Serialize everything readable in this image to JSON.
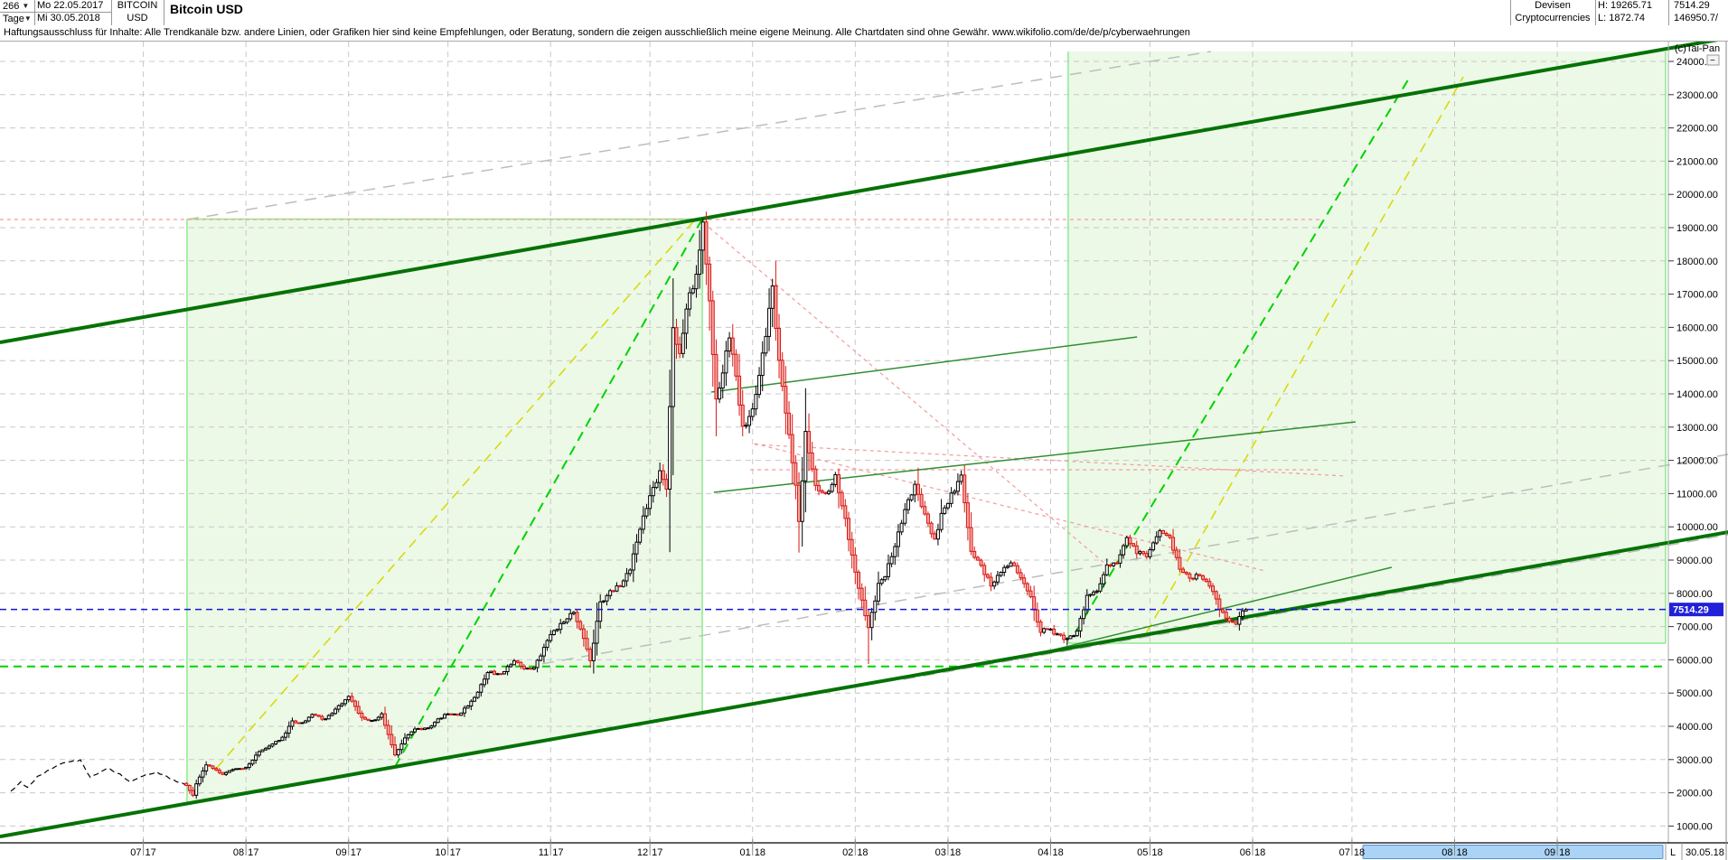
{
  "header": {
    "period": "266",
    "timeframe": "Tage",
    "date_from": "Mo 22.05.2017",
    "date_to": "Mi 30.05.2018",
    "symbol_line1": "BITCOIN",
    "symbol_line2": "USD",
    "title": "Bitcoin USD",
    "category_line1": "Devisen",
    "category_line2": "Cryptocurrencies",
    "high_label": "H: 19265.71",
    "low_label": "L: 1872.74",
    "last_price": "7514.29",
    "volume": "146950.7/"
  },
  "disclaimer": "Haftungsausschluss für Inhalte: Alle Trendkanäle bzw. andere Linien, oder Grafiken hier sind keine Empfehlungen, oder Beratung, sondern die zeigen ausschließlich meine eigene Meinung. Alle Chartdaten sind ohne Gewähr.  www.wikifolio.com/de/de/p/cyberwaehrungen",
  "watermark": "(c)Tai-Pan",
  "bottom_axis": {
    "last_label": "L",
    "last_date": "30.05.18"
  },
  "chart_data": {
    "type": "candlestick",
    "title": "Bitcoin USD",
    "x_start_date": "2017-05-22",
    "x_end_date": "2018-05-30",
    "high": 19265.71,
    "low": 1872.74,
    "last": 7514.29,
    "y_axis": {
      "min": 1000,
      "max": 24000,
      "step": 1000
    },
    "ylim": [
      430,
      24600
    ],
    "grid": true,
    "pre_line_end_day": 53,
    "months": [
      {
        "label": "07",
        "year": "17",
        "day": 40
      },
      {
        "label": "08",
        "year": "17",
        "day": 71
      },
      {
        "label": "09",
        "year": "17",
        "day": 102
      },
      {
        "label": "10",
        "year": "17",
        "day": 132
      },
      {
        "label": "11",
        "year": "17",
        "day": 163
      },
      {
        "label": "12",
        "year": "17",
        "day": 193
      },
      {
        "label": "01",
        "year": "18",
        "day": 224
      },
      {
        "label": "02",
        "year": "18",
        "day": 255
      },
      {
        "label": "03",
        "year": "18",
        "day": 283
      },
      {
        "label": "04",
        "year": "18",
        "day": 314
      },
      {
        "label": "05",
        "year": "18",
        "day": 344
      },
      {
        "label": "06",
        "year": "18",
        "day": 375
      },
      {
        "label": "07",
        "year": "18",
        "day": 405
      },
      {
        "label": "08",
        "year": "18",
        "day": 436
      },
      {
        "label": "09",
        "year": "18",
        "day": 467
      }
    ],
    "anchors": [
      [
        0,
        2050
      ],
      [
        3,
        2320
      ],
      [
        5,
        2150
      ],
      [
        8,
        2480
      ],
      [
        15,
        2880
      ],
      [
        21,
        2980
      ],
      [
        24,
        2450
      ],
      [
        29,
        2750
      ],
      [
        33,
        2550
      ],
      [
        36,
        2330
      ],
      [
        41,
        2550
      ],
      [
        44,
        2620
      ],
      [
        50,
        2350
      ],
      [
        53,
        2230
      ],
      [
        55,
        1930
      ],
      [
        56,
        2280
      ],
      [
        59,
        2850
      ],
      [
        64,
        2550
      ],
      [
        67,
        2700
      ],
      [
        71,
        2750
      ],
      [
        75,
        3250
      ],
      [
        78,
        3400
      ],
      [
        82,
        3650
      ],
      [
        85,
        4150
      ],
      [
        88,
        4100
      ],
      [
        91,
        4350
      ],
      [
        95,
        4200
      ],
      [
        99,
        4600
      ],
      [
        102,
        4900
      ],
      [
        106,
        4250
      ],
      [
        109,
        4150
      ],
      [
        112,
        4350
      ],
      [
        116,
        3150
      ],
      [
        119,
        3650
      ],
      [
        122,
        3900
      ],
      [
        126,
        3950
      ],
      [
        129,
        4200
      ],
      [
        132,
        4400
      ],
      [
        135,
        4320
      ],
      [
        140,
        4850
      ],
      [
        144,
        5650
      ],
      [
        148,
        5550
      ],
      [
        152,
        6000
      ],
      [
        155,
        5700
      ],
      [
        158,
        5750
      ],
      [
        163,
        6750
      ],
      [
        167,
        7150
      ],
      [
        170,
        7450
      ],
      [
        173,
        6650
      ],
      [
        175,
        5950
      ],
      [
        178,
        7700
      ],
      [
        181,
        8050
      ],
      [
        184,
        8250
      ],
      [
        187,
        8750
      ],
      [
        190,
        9950
      ],
      [
        193,
        10900
      ],
      [
        196,
        11650
      ],
      [
        198,
        11200
      ],
      [
        200,
        16000
      ],
      [
        202,
        15150
      ],
      [
        204,
        16650
      ],
      [
        207,
        17550
      ],
      [
        209,
        19200
      ],
      [
        211,
        16700
      ],
      [
        213,
        13800
      ],
      [
        215,
        14650
      ],
      [
        217,
        15750
      ],
      [
        219,
        14450
      ],
      [
        221,
        12950
      ],
      [
        224,
        13500
      ],
      [
        227,
        15150
      ],
      [
        230,
        17150
      ],
      [
        232,
        14950
      ],
      [
        234,
        13400
      ],
      [
        237,
        11300
      ],
      [
        238,
        10100
      ],
      [
        240,
        12800
      ],
      [
        243,
        11250
      ],
      [
        246,
        10950
      ],
      [
        249,
        11500
      ],
      [
        252,
        10250
      ],
      [
        254,
        9100
      ],
      [
        257,
        7750
      ],
      [
        259,
        6950
      ],
      [
        262,
        8250
      ],
      [
        264,
        8550
      ],
      [
        267,
        9450
      ],
      [
        270,
        10500
      ],
      [
        273,
        11250
      ],
      [
        276,
        10350
      ],
      [
        279,
        9600
      ],
      [
        281,
        10350
      ],
      [
        284,
        10950
      ],
      [
        287,
        11500
      ],
      [
        290,
        9250
      ],
      [
        293,
        8800
      ],
      [
        296,
        8250
      ],
      [
        299,
        8650
      ],
      [
        302,
        8950
      ],
      [
        305,
        8450
      ],
      [
        308,
        7850
      ],
      [
        311,
        6850
      ],
      [
        313,
        6950
      ],
      [
        316,
        6750
      ],
      [
        319,
        6600
      ],
      [
        322,
        6850
      ],
      [
        325,
        7900
      ],
      [
        328,
        8050
      ],
      [
        331,
        8850
      ],
      [
        334,
        8950
      ],
      [
        337,
        9650
      ],
      [
        340,
        9250
      ],
      [
        343,
        9100
      ],
      [
        347,
        9850
      ],
      [
        350,
        9650
      ],
      [
        353,
        8750
      ],
      [
        356,
        8450
      ],
      [
        359,
        8550
      ],
      [
        362,
        8250
      ],
      [
        365,
        7550
      ],
      [
        368,
        7150
      ],
      [
        370,
        7100
      ],
      [
        372,
        7450
      ],
      [
        373,
        7514.29
      ]
    ],
    "candle_overrides": [
      {
        "day": 209,
        "high": 19265.71
      },
      {
        "day": 55,
        "low": 1872.74
      },
      {
        "day": 259,
        "low": 5873
      },
      {
        "day": 274,
        "high": 11780
      },
      {
        "day": 287,
        "high": 11690
      },
      {
        "day": 319,
        "low": 6430
      },
      {
        "day": 373,
        "close": 7514.29
      }
    ],
    "regions": [
      {
        "name": "channel-zone-1",
        "pts": [
          [
            53.2,
            19258
          ],
          [
            208.8,
            19258
          ],
          [
            208.8,
            4408
          ],
          [
            53.2,
            1690
          ]
        ]
      },
      {
        "name": "channel-zone-2",
        "pts": [
          [
            319.3,
            24299
          ],
          [
            499.7,
            24299
          ],
          [
            499.7,
            6500
          ],
          [
            319.3,
            6500
          ]
        ]
      }
    ],
    "overlays": [
      {
        "n": "gray-diagonal-1",
        "c": "#bdbdbd",
        "w": 1.5,
        "d": "13 9",
        "p": [
          [
            53.2,
            19244
          ],
          [
            362.4,
            24299
          ]
        ]
      },
      {
        "n": "gray-diagonal-2",
        "c": "#bdbdbd",
        "w": 1.5,
        "d": "13 9",
        "p": [
          [
            160.5,
            5880
          ],
          [
            518.6,
            12180
          ]
        ]
      },
      {
        "n": "gray-diagonal-3",
        "c": "#bdbdbd",
        "w": 1.5,
        "d": "13 9",
        "p": [
          [
            269.6,
            5413
          ],
          [
            518.6,
            9761
          ]
        ]
      },
      {
        "n": "support-dashed-green",
        "c": "#00d200",
        "w": 2,
        "d": "9 6",
        "p": [
          [
            -3.3,
            5800
          ],
          [
            499.7,
            5800
          ]
        ]
      },
      {
        "n": "zone1-border-top",
        "c": "#90e890",
        "w": 1.5,
        "d": null,
        "p": [
          [
            53.2,
            19258
          ],
          [
            208.8,
            19258
          ]
        ]
      },
      {
        "n": "zone1-border-left",
        "c": "#90e890",
        "w": 1.5,
        "d": null,
        "p": [
          [
            53.2,
            19258
          ],
          [
            53.2,
            1690
          ]
        ]
      },
      {
        "n": "zone1-border-right",
        "c": "#90e890",
        "w": 1.5,
        "d": null,
        "p": [
          [
            208.8,
            19258
          ],
          [
            208.8,
            4408
          ]
        ]
      },
      {
        "n": "zone2-border-left",
        "c": "#90e890",
        "w": 1.5,
        "d": null,
        "p": [
          [
            319.3,
            24299
          ],
          [
            319.3,
            6500
          ]
        ]
      },
      {
        "n": "zone2-border-right",
        "c": "#90e890",
        "w": 1.5,
        "d": null,
        "p": [
          [
            499.7,
            24299
          ],
          [
            499.7,
            6500
          ]
        ]
      },
      {
        "n": "zone2-border-bottom",
        "c": "#90e890",
        "w": 1.5,
        "d": null,
        "p": [
          [
            319.3,
            6500
          ],
          [
            499.7,
            6500
          ]
        ]
      },
      {
        "n": "fan-dashed-green-1",
        "c": "#00d200",
        "w": 2,
        "d": "11 7",
        "p": [
          [
            116,
            2777
          ],
          [
            209.3,
            19353
          ]
        ]
      },
      {
        "n": "fan-dashed-green-2",
        "c": "#00d200",
        "w": 2,
        "d": "11 7",
        "p": [
          [
            321.5,
            6826
          ],
          [
            422.5,
            23538
          ]
        ]
      },
      {
        "n": "fan-dashed-yellow-1",
        "c": "#d8d800",
        "w": 1.5,
        "d": "11 7",
        "p": [
          [
            62.2,
            2750
          ],
          [
            207.4,
            19326
          ]
        ]
      },
      {
        "n": "fan-dashed-yellow-2",
        "c": "#d8d800",
        "w": 1.5,
        "d": "11 7",
        "p": [
          [
            343,
            6826
          ],
          [
            438.6,
            23538
          ]
        ]
      },
      {
        "n": "red-dotted-ath",
        "c": "#f59a9a",
        "w": 1.2,
        "d": "4 4",
        "p": [
          [
            -3.3,
            19244
          ],
          [
            395.2,
            19244
          ]
        ]
      },
      {
        "n": "red-dotted-feb-high",
        "c": "#f59a9a",
        "w": 1.2,
        "d": "4 4",
        "p": [
          [
            223.3,
            11717
          ],
          [
            395.2,
            11717
          ]
        ]
      },
      {
        "n": "red-dotted-fan-1",
        "c": "#f59a9a",
        "w": 1.2,
        "d": "4 4",
        "p": [
          [
            209.3,
            19136
          ],
          [
            332.4,
            8728
          ]
        ]
      },
      {
        "n": "red-dotted-fan-2",
        "c": "#f59a9a",
        "w": 1.2,
        "d": "4 4",
        "p": [
          [
            224.6,
            12505
          ],
          [
            378.8,
            8674
          ]
        ]
      },
      {
        "n": "red-dotted-fan-3",
        "c": "#f59a9a",
        "w": 1.2,
        "d": "4 4",
        "p": [
          [
            224.6,
            12478
          ],
          [
            403.4,
            11527
          ]
        ]
      },
      {
        "n": "thin-green-resistance-a",
        "c": "#2f8f2f",
        "w": 1.5,
        "d": null,
        "p": [
          [
            211.5,
            14054
          ],
          [
            340.1,
            15712
          ]
        ]
      },
      {
        "n": "thin-green-resistance-b",
        "c": "#2f8f2f",
        "w": 1.5,
        "d": null,
        "p": [
          [
            212.3,
            11038
          ],
          [
            406.1,
            13158
          ]
        ]
      },
      {
        "n": "thin-green-support-c",
        "c": "#2f8f2f",
        "w": 1.5,
        "d": null,
        "p": [
          [
            311.9,
            6228
          ],
          [
            417,
            8783
          ]
        ]
      },
      {
        "n": "channel-upper",
        "c": "#057205",
        "w": 4,
        "d": null,
        "p": [
          [
            -3.3,
            15549
          ],
          [
            518.6,
            24707
          ]
        ]
      },
      {
        "n": "channel-lower",
        "c": "#057205",
        "w": 4,
        "d": null,
        "p": [
          [
            -3.3,
            685
          ],
          [
            518.6,
            9842
          ]
        ]
      }
    ],
    "current_price_line": {
      "price": 7514.29,
      "color": "#1515d8"
    },
    "scrollbar": {
      "from_day": 408.3,
      "to_day": 498.9
    },
    "colors": {
      "up_fill": "#ffffff",
      "up_stroke": "#000000",
      "down_fill": "#f3a9a2",
      "down_stroke": "#db1512",
      "region_fill": "#e9f8e3",
      "grid": "#c8c8c8",
      "price_tag_bg": "#2020d8",
      "scrollbar_fill": "#abd3f5",
      "scrollbar_stroke": "#5590cc",
      "marker_triangle": "#00a550"
    }
  }
}
